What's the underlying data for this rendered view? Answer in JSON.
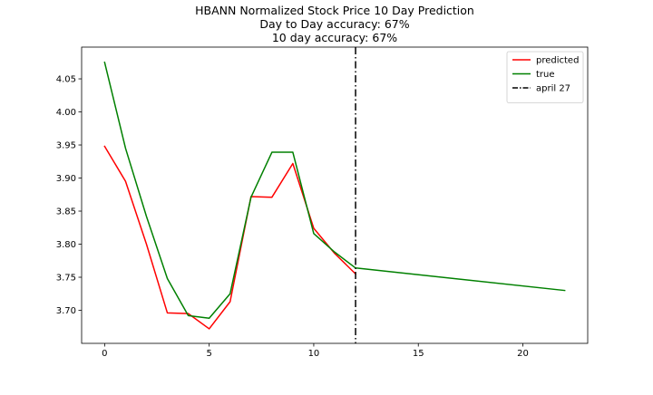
{
  "chart_data": {
    "type": "line",
    "title_lines": [
      "HBANN Normalized Stock Price 10 Day Prediction",
      "Day to Day accuracy: 67%",
      "10 day accuracy: 67%"
    ],
    "xlabel": "",
    "ylabel": "",
    "xlim": [
      -1.1,
      23.1
    ],
    "ylim": [
      3.65,
      4.098
    ],
    "x_ticks": [
      0,
      5,
      10,
      15,
      20
    ],
    "x_tick_labels": [
      "0",
      "5",
      "10",
      "15",
      "20"
    ],
    "y_ticks": [
      3.7,
      3.75,
      3.8,
      3.85,
      3.9,
      3.95,
      4.0,
      4.05
    ],
    "y_tick_labels": [
      "3.70",
      "3.75",
      "3.80",
      "3.85",
      "3.90",
      "3.95",
      "4.00",
      "4.05"
    ],
    "grid": false,
    "legend_position": "top-right",
    "series": [
      {
        "name": "predicted",
        "color": "#ff0000",
        "x": [
          0,
          1,
          2,
          3,
          4,
          5,
          6,
          7,
          8,
          9,
          10,
          11,
          12
        ],
        "y": [
          3.948,
          3.895,
          3.8,
          3.696,
          3.695,
          3.672,
          3.713,
          3.872,
          3.871,
          3.922,
          3.824,
          3.786,
          3.755
        ]
      },
      {
        "name": "true",
        "color": "#008000",
        "x": [
          0,
          1,
          2,
          3,
          4,
          5,
          6,
          7,
          8,
          9,
          10,
          11,
          12,
          22
        ],
        "y": [
          4.075,
          3.945,
          3.842,
          3.748,
          3.692,
          3.688,
          3.725,
          3.871,
          3.939,
          3.939,
          3.816,
          3.788,
          3.764,
          3.73
        ]
      }
    ],
    "vlines": [
      {
        "name": "april 27",
        "x": 12,
        "color": "#000000",
        "style": "dash-dot"
      }
    ]
  }
}
